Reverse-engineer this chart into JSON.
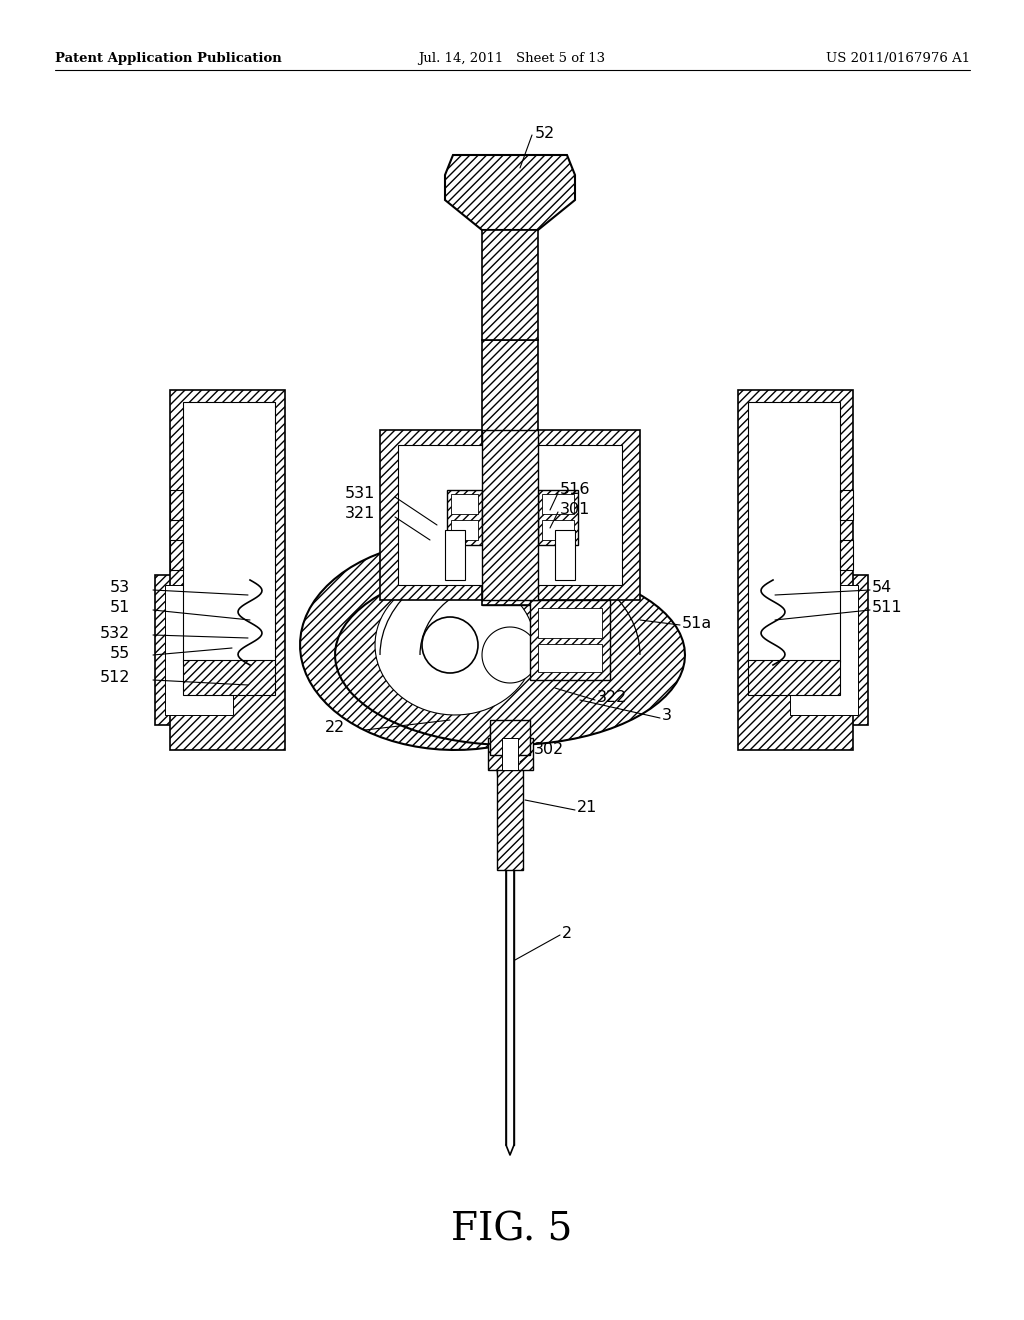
{
  "header_left": "Patent Application Publication",
  "header_center": "Jul. 14, 2011   Sheet 5 of 13",
  "header_right": "US 2011/0167976 A1",
  "figure_label": "FIG. 5",
  "bg_color": "#ffffff",
  "line_color": "#000000",
  "fig_width": 10.24,
  "fig_height": 13.2,
  "dpi": 100
}
